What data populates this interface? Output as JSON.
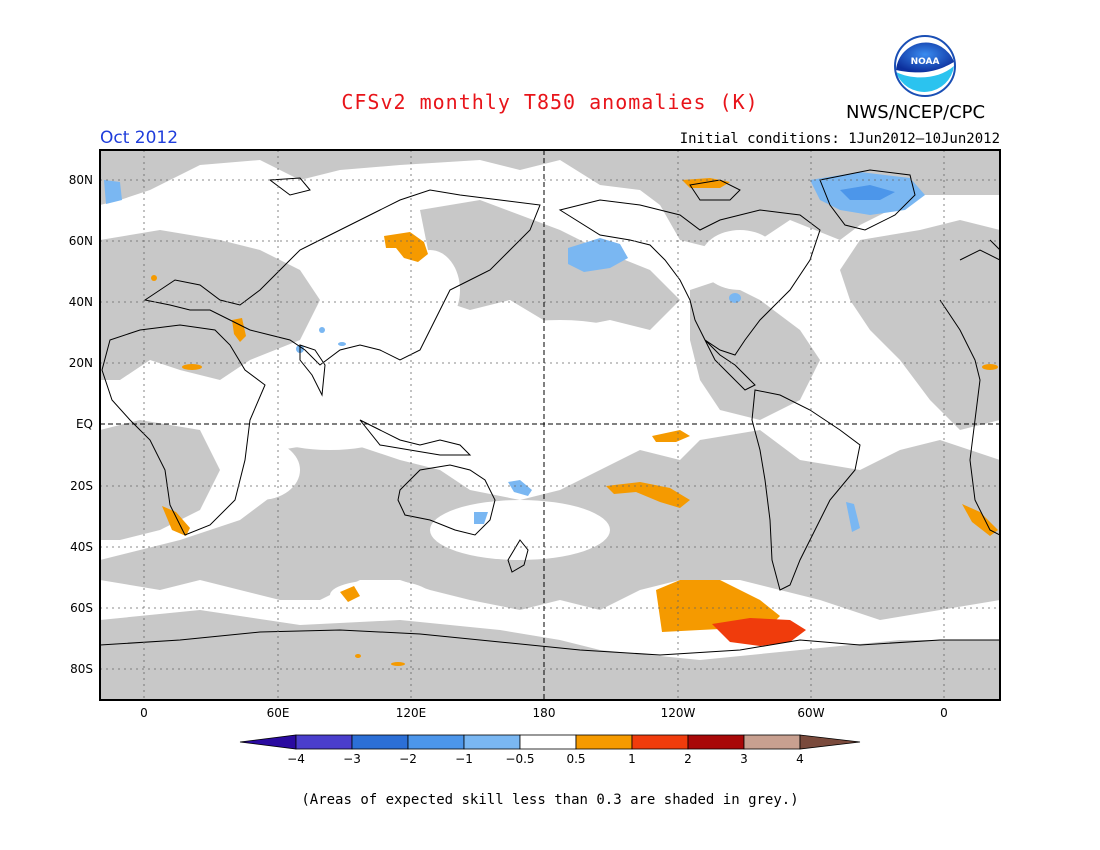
{
  "title": "CFSv2 monthly T850 anomalies (K)",
  "agency": "NWS/NCEP/CPC",
  "logo_text": "NOAA",
  "month_label": "Oct 2012",
  "initial_conditions": "Initial conditions: 1Jun2012–10Jun2012",
  "footnote": "(Areas of expected skill less than 0.3 are shaded in grey.)",
  "colors": {
    "low_skill_grey": "#c8c8c8",
    "neg4": "#2a0aa0",
    "neg3": "#4a3ecc",
    "neg2": "#2c6fd6",
    "neg1": "#4c96ea",
    "neg05": "#7ab7f2",
    "neutral": "#ffffff",
    "pos05": "#f59a00",
    "pos1": "#f03c0c",
    "pos2": "#a80808",
    "pos3": "#c8a090",
    "pos4": "#7a4a3c"
  },
  "map": {
    "lat_labels": [
      "80N",
      "60N",
      "40N",
      "20N",
      "EQ",
      "20S",
      "40S",
      "60S",
      "80S"
    ],
    "lon_labels": [
      "0",
      "60E",
      "120E",
      "180",
      "120W",
      "60W",
      "0"
    ]
  },
  "colorbar": {
    "labels": [
      "−4",
      "−3",
      "−2",
      "−1",
      "−0.5",
      "0.5",
      "1",
      "2",
      "3",
      "4"
    ]
  },
  "anomaly_regions": [
    {
      "name": "arctic-greenland-negative",
      "category": "neg05"
    },
    {
      "name": "north-pacific-negative",
      "category": "neg05"
    },
    {
      "name": "siberia-positive",
      "category": "pos05"
    },
    {
      "name": "arctic-canada-positive",
      "category": "pos05"
    },
    {
      "name": "east-pacific-positive",
      "category": "pos05"
    },
    {
      "name": "south-pacific-positive",
      "category": "pos05"
    },
    {
      "name": "southern-ocean-positive",
      "category": "pos05"
    },
    {
      "name": "bellingshausen-strong-positive",
      "category": "pos1"
    }
  ]
}
